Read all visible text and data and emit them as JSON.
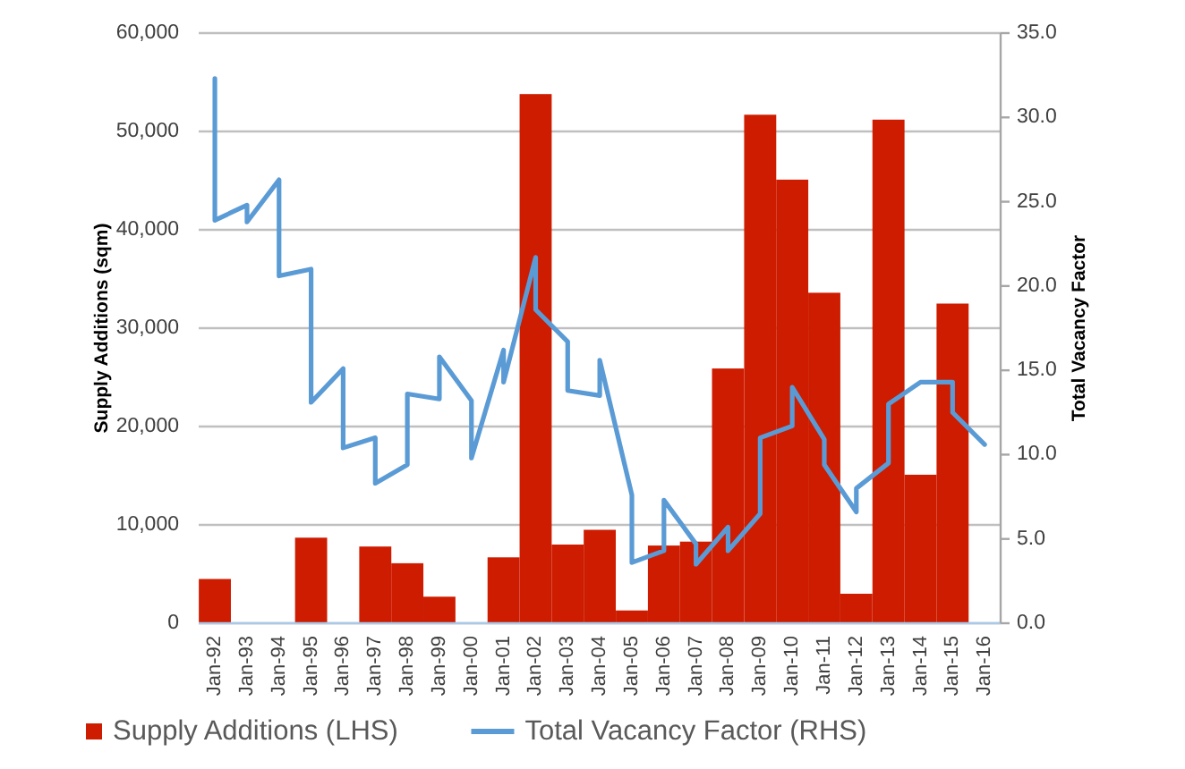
{
  "chart_data": {
    "type": "bar",
    "series": [
      {
        "name": "Supply Additions (LHS)",
        "color": "#cd1c00",
        "x": [
          "1992-01",
          "1993-01",
          "1994-01",
          "1995-01",
          "1996-01",
          "1997-01",
          "1998-01",
          "1999-01",
          "2000-01",
          "2001-01",
          "2002-01",
          "2003-01",
          "2004-01",
          "2005-01",
          "2006-01",
          "2007-01",
          "2008-01",
          "2009-01",
          "2010-01",
          "2011-01",
          "2012-01",
          "2013-01",
          "2014-01",
          "2015-01"
        ],
        "values": [
          4500,
          0,
          0,
          8700,
          0,
          7800,
          6100,
          2700,
          0,
          6700,
          53800,
          8000,
          9500,
          1300,
          7900,
          8300,
          25900,
          51700,
          45100,
          33600,
          3000,
          51200,
          15100,
          32500
        ]
      },
      {
        "name": "Total Vacancy Factor (RHS)",
        "type": "line",
        "axis": "y2",
        "color": "#5b9bd5",
        "x": [
          "1992-01",
          "1992-01",
          "1993-01",
          "1993-01",
          "1994-01",
          "1994-01",
          "1995-01",
          "1995-01",
          "1996-01",
          "1996-01",
          "1997-01",
          "1997-01",
          "1998-01",
          "1998-01",
          "1999-01",
          "1999-01",
          "2000-01",
          "2000-01",
          "2001-01",
          "2001-01",
          "2002-01",
          "2002-01",
          "2003-01",
          "2003-01",
          "2004-01",
          "2004-01",
          "2005-01",
          "2005-01",
          "2006-01",
          "2006-01",
          "2007-01",
          "2007-01",
          "2008-01",
          "2008-01",
          "2009-01",
          "2009-01",
          "2010-01",
          "2010-01",
          "2011-01",
          "2011-01",
          "2012-01",
          "2012-01",
          "2013-01",
          "2013-01",
          "2014-01",
          "2015-01",
          "2015-01",
          "2016-01"
        ],
        "values": [
          32.3,
          23.9,
          24.8,
          23.8,
          26.3,
          20.6,
          21.0,
          13.1,
          15.1,
          10.4,
          11.0,
          8.3,
          9.4,
          13.6,
          13.3,
          15.8,
          13.2,
          9.8,
          16.2,
          14.3,
          21.7,
          18.6,
          16.7,
          13.8,
          13.5,
          15.6,
          7.6,
          3.6,
          4.3,
          7.3,
          4.7,
          3.5,
          5.7,
          4.3,
          6.5,
          11.0,
          11.7,
          14.0,
          10.9,
          9.4,
          6.6,
          8.0,
          9.5,
          13.0,
          14.3,
          14.3,
          12.5,
          10.6
        ]
      }
    ],
    "xlim": [
      "1991-07",
      "2016-07"
    ],
    "xticks": [
      {
        "value": "1992-01",
        "label": "Jan-92"
      },
      {
        "value": "1993-01",
        "label": "Jan-93"
      },
      {
        "value": "1994-01",
        "label": "Jan-94"
      },
      {
        "value": "1995-01",
        "label": "Jan-95"
      },
      {
        "value": "1996-01",
        "label": "Jan-96"
      },
      {
        "value": "1997-01",
        "label": "Jan-97"
      },
      {
        "value": "1998-01",
        "label": "Jan-98"
      },
      {
        "value": "1999-01",
        "label": "Jan-99"
      },
      {
        "value": "2000-01",
        "label": "Jan-00"
      },
      {
        "value": "2001-01",
        "label": "Jan-01"
      },
      {
        "value": "2002-01",
        "label": "Jan-02"
      },
      {
        "value": "2003-01",
        "label": "Jan-03"
      },
      {
        "value": "2004-01",
        "label": "Jan-04"
      },
      {
        "value": "2005-01",
        "label": "Jan-05"
      },
      {
        "value": "2006-01",
        "label": "Jan-06"
      },
      {
        "value": "2007-01",
        "label": "Jan-07"
      },
      {
        "value": "2008-01",
        "label": "Jan-08"
      },
      {
        "value": "2009-01",
        "label": "Jan-09"
      },
      {
        "value": "2010-01",
        "label": "Jan-10"
      },
      {
        "value": "2011-01",
        "label": "Jan-11"
      },
      {
        "value": "2012-01",
        "label": "Jan-12"
      },
      {
        "value": "2013-01",
        "label": "Jan-13"
      },
      {
        "value": "2014-01",
        "label": "Jan-14"
      },
      {
        "value": "2015-01",
        "label": "Jan-15"
      },
      {
        "value": "2016-01",
        "label": "Jan-16"
      }
    ],
    "ylim": [
      0,
      60000
    ],
    "yticks": [
      0,
      {
        "value": 10000,
        "label": "10,000"
      },
      {
        "value": 20000,
        "label": "20,000"
      },
      {
        "value": 30000,
        "label": "30,000"
      },
      {
        "value": 40000,
        "label": "40,000"
      },
      {
        "value": 50000,
        "label": "50,000"
      },
      {
        "value": 60000,
        "label": "60,000"
      }
    ],
    "y2lim": [
      0,
      35
    ],
    "y2ticks": [
      {
        "value": 0,
        "label": "0.0"
      },
      {
        "value": 5,
        "label": "5.0"
      },
      {
        "value": 10,
        "label": "10.0"
      },
      {
        "value": 15,
        "label": "15.0"
      },
      {
        "value": 20,
        "label": "20.0"
      },
      {
        "value": 25,
        "label": "25.0"
      },
      {
        "value": 30,
        "label": "30.0"
      },
      {
        "value": 35,
        "label": "35.0"
      }
    ],
    "ylabel": "Supply Additions (sqm)",
    "y2label": "Total Vacancy Factor",
    "grid": "y",
    "legend": "bottom"
  }
}
